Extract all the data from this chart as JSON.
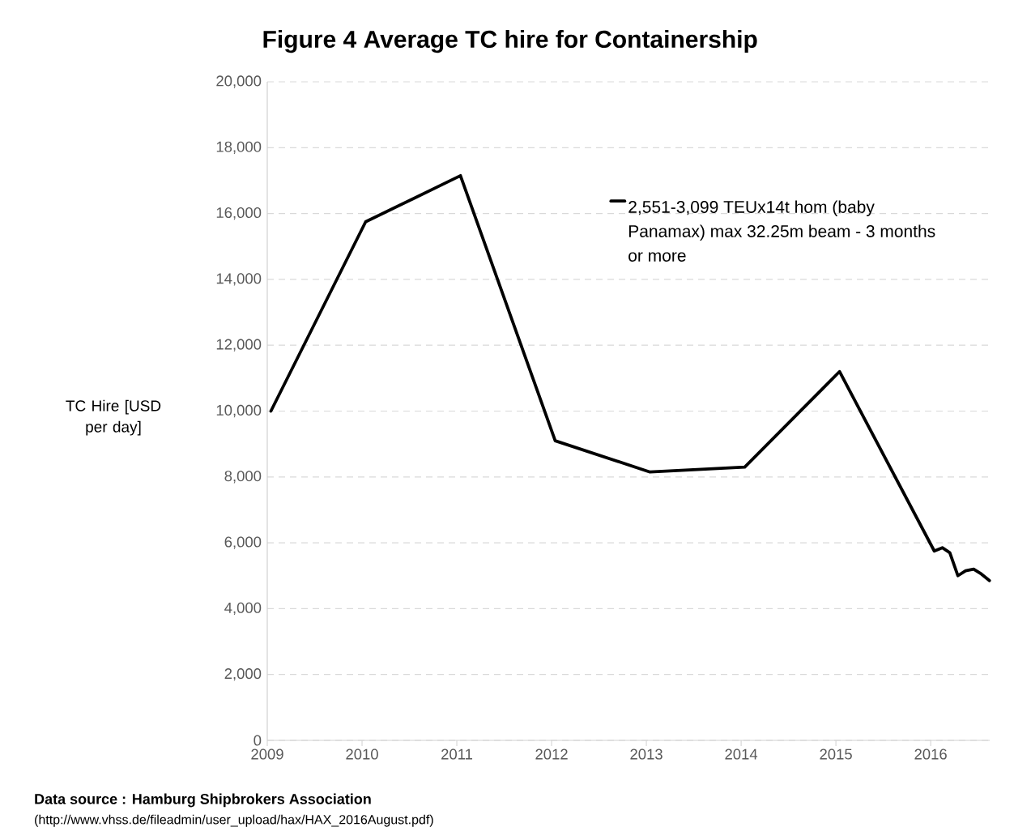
{
  "chart_data": {
    "type": "line",
    "title": "Figure 4 Average TC hire for Containership",
    "ylabel": "TC Hire [USD per day]",
    "annotations": [
      "Data source : Hamburg Shipbrokers Association",
      "(http://www.vhss.de/fileadmin/user_upload/hax/HAX_2016August.pdf)"
    ],
    "x": [
      "2009-01-15",
      "2010-01-15",
      "2011-01-15",
      "2012-01-15",
      "2013-01-15",
      "2014-01-15",
      "2015-01-15",
      "2016-01-15",
      "2016-02-15",
      "2016-03-15",
      "2016-04-15",
      "2016-05-15",
      "2016-06-15",
      "2016-07-15",
      "2016-08-15"
    ],
    "series": [
      {
        "name": "2,551-3,099 TEUx14t hom (baby Panamax) max 32.25m beam - 3 months or more",
        "color": "#000000",
        "values": [
          10000,
          15750,
          17150,
          9100,
          8150,
          8300,
          11200,
          5750,
          5850,
          5700,
          5000,
          5150,
          5200,
          5050,
          4850
        ]
      }
    ],
    "xlim": [
      "2009",
      "2016-08-16"
    ],
    "xticks": [
      {
        "value": "2009",
        "label": "2009"
      },
      {
        "value": "2010",
        "label": "2010"
      },
      {
        "value": "2011",
        "label": "2011"
      },
      {
        "value": "2012",
        "label": "2012"
      },
      {
        "value": "2013",
        "label": "2013"
      },
      {
        "value": "2014",
        "label": "2014"
      },
      {
        "value": "2015",
        "label": "2015"
      },
      {
        "value": "2016",
        "label": "2016"
      }
    ],
    "ylim": [
      0,
      20000
    ],
    "yticks": [
      {
        "value": 0,
        "label": "0"
      },
      {
        "value": 2000,
        "label": "2,000"
      },
      {
        "value": 4000,
        "label": "4,000"
      },
      {
        "value": 6000,
        "label": "6,000"
      },
      {
        "value": 8000,
        "label": "8,000"
      },
      {
        "value": 10000,
        "label": "10,000"
      },
      {
        "value": 12000,
        "label": "12,000"
      },
      {
        "value": 14000,
        "label": "14,000"
      },
      {
        "value": 16000,
        "label": "16,000"
      },
      {
        "value": 18000,
        "label": "18,000"
      },
      {
        "value": 20000,
        "label": "20,000"
      }
    ],
    "grid": "y",
    "legend": "top right",
    "line_style": "solid"
  }
}
